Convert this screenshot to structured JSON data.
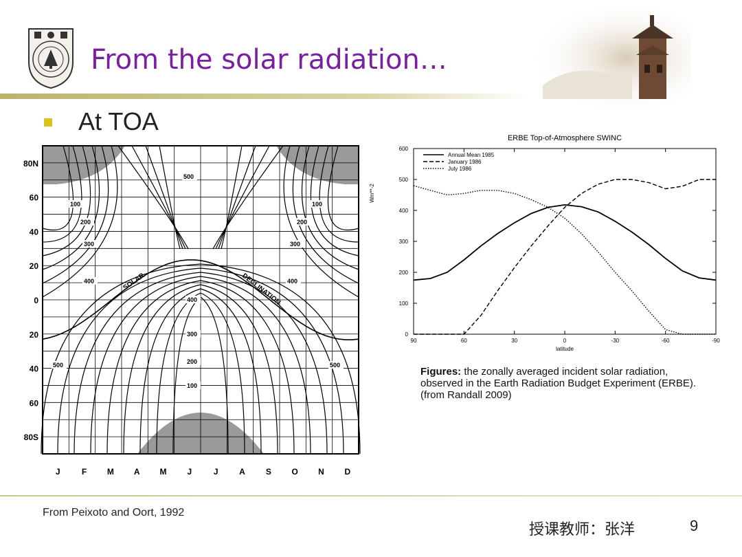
{
  "slide": {
    "title": "From the solar radiation…",
    "bullet": "At TOA",
    "caption_bold": "Figures:",
    "caption_rest": " the zonally averaged incident solar radiation, observed in the Earth Radiation Budget Experiment (ERBE). (from Randall 2009)",
    "source": "From Peixoto and Oort, 1992",
    "teacher": "授课教师：张洋",
    "page_number": "9",
    "logo": "university-seal-icon",
    "header_image": "campus-tower-photo"
  },
  "chart_data": [
    {
      "type": "contour",
      "title": "",
      "months": [
        "J",
        "F",
        "M",
        "A",
        "M",
        "J",
        "J",
        "A",
        "S",
        "O",
        "N",
        "D"
      ],
      "lat_ticks": [
        "80N",
        "60",
        "40",
        "20",
        "0",
        "20",
        "40",
        "60",
        "80S"
      ],
      "contour_labels": [
        "500",
        "100",
        "200",
        "300",
        "400",
        "100",
        "200",
        "300",
        "400",
        "400",
        "300",
        "200",
        "100",
        "500",
        "500"
      ],
      "curve_labels": [
        "SOLAR",
        "DECLINATION"
      ],
      "colors": {
        "line": "#000000",
        "polar_night": "#9a9a9a"
      }
    },
    {
      "type": "line",
      "title": "ERBE Top-of-Atmosphere SWINC",
      "xlabel": "latitude",
      "ylabel": "Wm**-2",
      "x_ticks": [
        "90",
        "60",
        "30",
        "0",
        "-30",
        "-60",
        "-90"
      ],
      "y_ticks": [
        "0",
        "100",
        "200",
        "300",
        "400",
        "500",
        "600"
      ],
      "xlim": [
        90,
        -90
      ],
      "ylim": [
        0,
        600
      ],
      "legend": [
        "Annual Mean 1985",
        "January 1986",
        "July 1986"
      ],
      "x": [
        90,
        80,
        70,
        60,
        50,
        40,
        30,
        20,
        10,
        0,
        -10,
        -20,
        -30,
        -40,
        -50,
        -60,
        -70,
        -80,
        -90
      ],
      "series": [
        {
          "name": "Annual Mean 1985",
          "style": "solid",
          "values": [
            175,
            180,
            200,
            240,
            285,
            325,
            360,
            390,
            410,
            418,
            412,
            395,
            365,
            330,
            290,
            245,
            205,
            182,
            175
          ]
        },
        {
          "name": "January 1986",
          "style": "dashed",
          "values": [
            0,
            0,
            0,
            0,
            60,
            140,
            215,
            285,
            350,
            410,
            455,
            485,
            500,
            500,
            490,
            470,
            478,
            500,
            500
          ]
        },
        {
          "name": "July 1986",
          "style": "dotted",
          "values": [
            480,
            465,
            450,
            455,
            465,
            465,
            455,
            435,
            410,
            375,
            325,
            265,
            200,
            140,
            75,
            15,
            0,
            0,
            0
          ]
        }
      ]
    }
  ]
}
